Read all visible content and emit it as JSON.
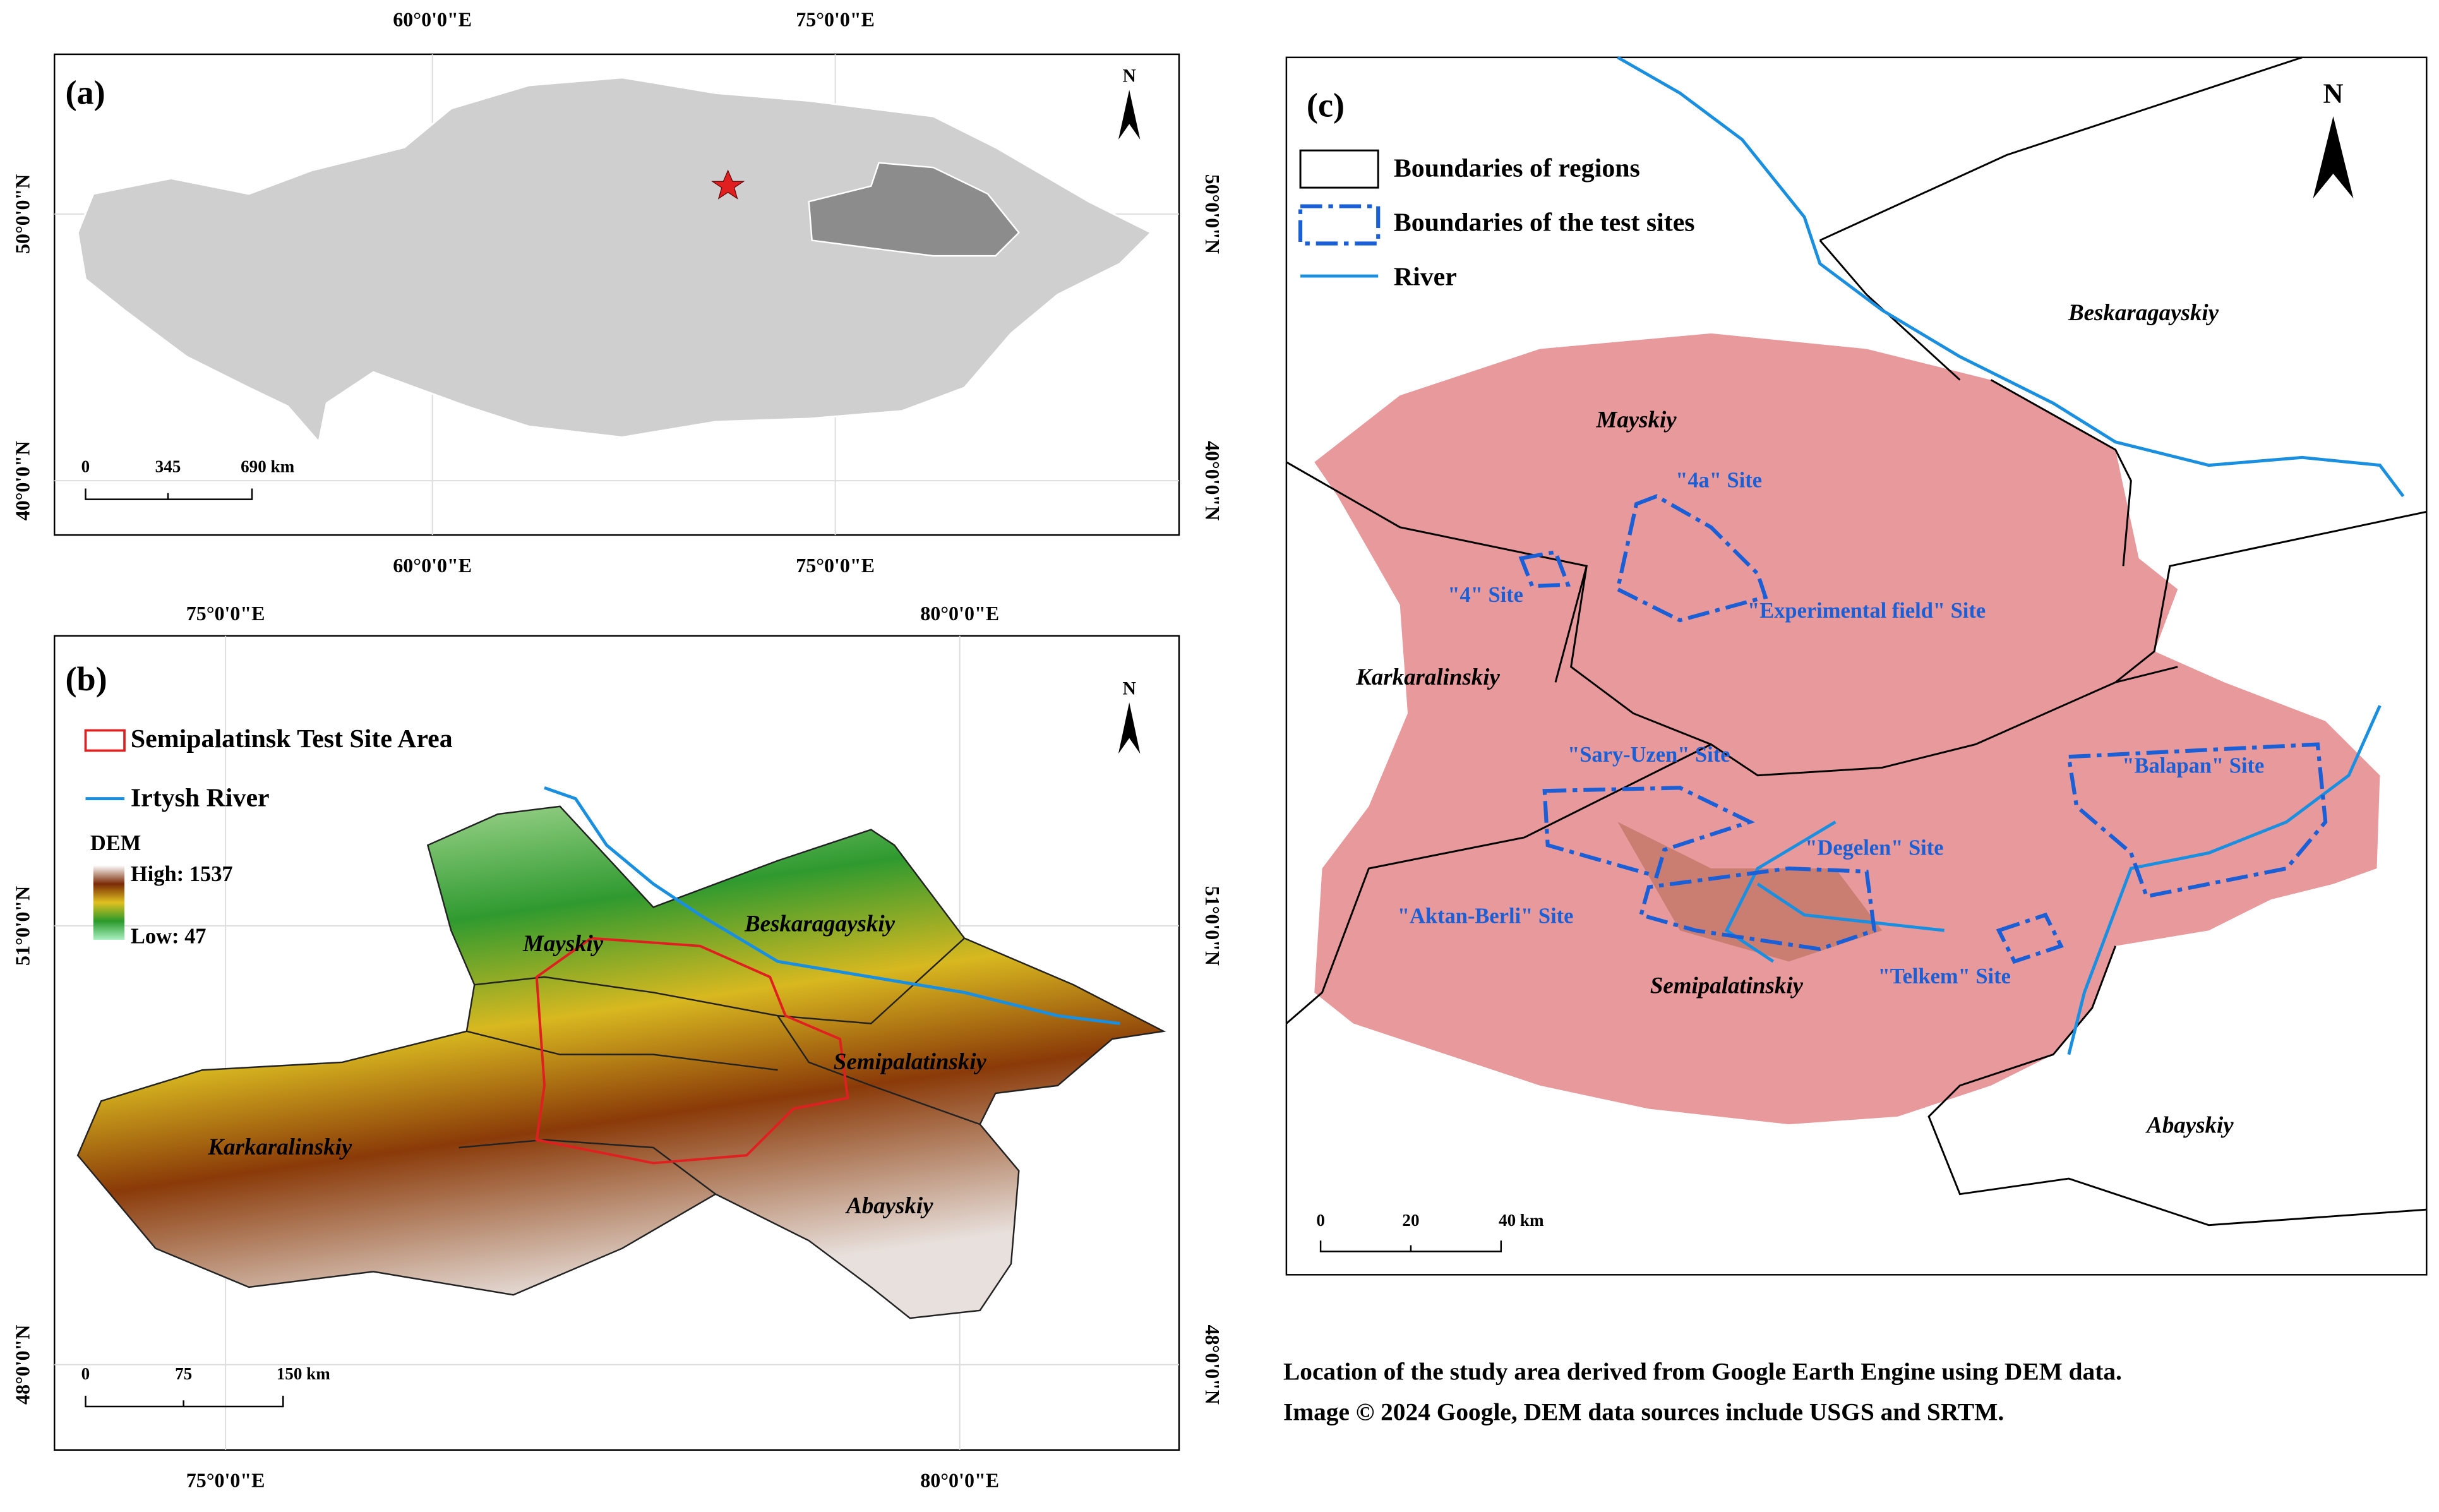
{
  "panel_a": {
    "label": "(a)",
    "north": "N",
    "lon_labels": [
      "60°0'0\"E",
      "75°0'0\"E"
    ],
    "lat_labels": [
      "50°0'0\"N",
      "40°0'0\"N"
    ],
    "scale": [
      "0",
      "345",
      "690 km"
    ]
  },
  "panel_b": {
    "label": "(b)",
    "north": "N",
    "lon_labels": [
      "75°0'0\"E",
      "80°0'0\"E"
    ],
    "lat_labels": [
      "51°0'0\"N",
      "48°0'0\"N"
    ],
    "legend": [
      "Semipalatinsk Test Site Area",
      "Irtysh River"
    ],
    "dem": {
      "title": "DEM",
      "high": "High: 1537",
      "low": "Low: 47"
    },
    "regions": [
      "Mayskiy",
      "Beskaragayskiy",
      "Semipalatinskiy",
      "Karkaralinskiy",
      "Abayskiy"
    ],
    "scale": [
      "0",
      "75",
      "150 km"
    ]
  },
  "panel_c": {
    "label": "(c)",
    "north": "N",
    "legend": [
      "Boundaries of regions",
      "Boundaries of the test sites",
      "River"
    ],
    "regions": [
      "Beskaragayskiy",
      "Mayskiy",
      "Karkaralinskiy",
      "Semipalatinskiy",
      "Abayskiy"
    ],
    "sites": [
      "\"4a\" Site",
      "\"4\" Site",
      "\"Experimental field\" Site",
      "\"Sary-Uzen\" Site",
      "\"Balapan\" Site",
      "\"Degelen\" Site",
      "\"Aktan-Berli\" Site",
      "\"Telkem\" Site"
    ],
    "scale": [
      "0",
      "20",
      "40 km"
    ]
  },
  "caption": [
    "Location of the study area derived from Google Earth Engine using DEM data.",
    "Image © 2024 Google, DEM data sources include USGS and SRTM."
  ]
}
